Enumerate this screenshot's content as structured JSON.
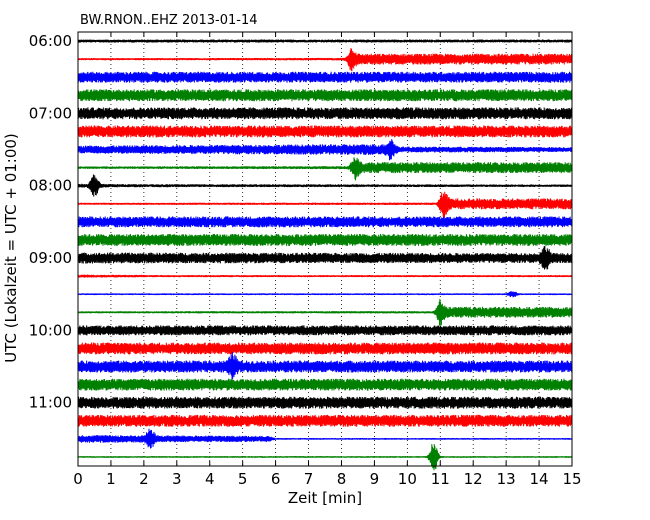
{
  "chart_data": {
    "type": "line",
    "title": "BW.RNON..EHZ 2013-01-14",
    "xlabel": "Zeit  [min]",
    "ylabel": "UTC (Lokalzeit = UTC + 01:00)",
    "xlim": [
      0,
      15
    ],
    "x_ticks": [
      "0",
      "1",
      "2",
      "3",
      "4",
      "5",
      "6",
      "7",
      "8",
      "9",
      "10",
      "11",
      "12",
      "13",
      "14",
      "15"
    ],
    "y_ticks": [
      "06:00",
      "07:00",
      "08:00",
      "09:00",
      "10:00",
      "11:00"
    ],
    "grid": true,
    "line_colors": [
      "#000000",
      "#ff0000",
      "#0000ff",
      "#008000"
    ],
    "series": [
      {
        "start": "06:00",
        "color": "#000000",
        "level": [
          [
            0,
            0.15
          ],
          [
            15,
            0.15
          ]
        ],
        "events": []
      },
      {
        "start": "06:15",
        "color": "#ff0000",
        "level": [
          [
            0,
            0.1
          ],
          [
            8.2,
            0.12
          ],
          [
            8.35,
            0.55
          ],
          [
            15,
            0.55
          ]
        ],
        "events": [
          {
            "t": 8.3,
            "amp": 0.9
          }
        ]
      },
      {
        "start": "06:30",
        "color": "#0000ff",
        "level": [
          [
            0,
            0.55
          ],
          [
            15,
            0.55
          ]
        ],
        "events": []
      },
      {
        "start": "06:45",
        "color": "#008000",
        "level": [
          [
            0,
            0.6
          ],
          [
            15,
            0.6
          ]
        ],
        "events": []
      },
      {
        "start": "07:00",
        "color": "#000000",
        "level": [
          [
            0,
            0.6
          ],
          [
            15,
            0.6
          ]
        ],
        "events": []
      },
      {
        "start": "07:15",
        "color": "#ff0000",
        "level": [
          [
            0,
            0.6
          ],
          [
            15,
            0.6
          ]
        ],
        "events": []
      },
      {
        "start": "07:30",
        "color": "#0000ff",
        "level": [
          [
            0,
            0.4
          ],
          [
            9.2,
            0.55
          ],
          [
            9.8,
            0.3
          ],
          [
            15,
            0.25
          ]
        ],
        "events": [
          {
            "t": 9.5,
            "amp": 0.8
          }
        ]
      },
      {
        "start": "07:45",
        "color": "#008000",
        "level": [
          [
            0,
            0.12
          ],
          [
            8.3,
            0.15
          ],
          [
            8.45,
            0.55
          ],
          [
            15,
            0.55
          ]
        ],
        "events": [
          {
            "t": 8.4,
            "amp": 0.9
          }
        ]
      },
      {
        "start": "08:00",
        "color": "#000000",
        "level": [
          [
            0,
            0.2
          ],
          [
            1.5,
            0.15
          ],
          [
            15,
            0.12
          ]
        ],
        "events": [
          {
            "t": 0.5,
            "amp": 1.1
          }
        ]
      },
      {
        "start": "08:15",
        "color": "#ff0000",
        "level": [
          [
            0,
            0.1
          ],
          [
            10.9,
            0.12
          ],
          [
            11.1,
            0.55
          ],
          [
            15,
            0.55
          ]
        ],
        "events": [
          {
            "t": 11.1,
            "amp": 0.9
          }
        ]
      },
      {
        "start": "08:30",
        "color": "#0000ff",
        "level": [
          [
            0,
            0.55
          ],
          [
            15,
            0.55
          ]
        ],
        "events": []
      },
      {
        "start": "08:45",
        "color": "#008000",
        "level": [
          [
            0,
            0.6
          ],
          [
            15,
            0.6
          ]
        ],
        "events": []
      },
      {
        "start": "09:00",
        "color": "#000000",
        "level": [
          [
            0,
            0.55
          ],
          [
            15,
            0.5
          ]
        ],
        "events": [
          {
            "t": 14.2,
            "amp": 0.9
          }
        ]
      },
      {
        "start": "09:15",
        "color": "#ff0000",
        "level": [
          [
            0,
            0.15
          ],
          [
            3,
            0.1
          ],
          [
            15,
            0.1
          ]
        ],
        "events": []
      },
      {
        "start": "09:30",
        "color": "#0000ff",
        "level": [
          [
            0,
            0.08
          ],
          [
            15,
            0.08
          ]
        ],
        "events": [
          {
            "t": 13.2,
            "amp": 0.3
          }
        ]
      },
      {
        "start": "09:45",
        "color": "#008000",
        "level": [
          [
            0,
            0.1
          ],
          [
            10.9,
            0.12
          ],
          [
            11.0,
            0.55
          ],
          [
            15,
            0.55
          ]
        ],
        "events": [
          {
            "t": 11.0,
            "amp": 0.9
          }
        ]
      },
      {
        "start": "10:00",
        "color": "#000000",
        "level": [
          [
            0,
            0.5
          ],
          [
            15,
            0.5
          ]
        ],
        "events": []
      },
      {
        "start": "10:15",
        "color": "#ff0000",
        "level": [
          [
            0,
            0.6
          ],
          [
            15,
            0.6
          ]
        ],
        "events": []
      },
      {
        "start": "10:30",
        "color": "#0000ff",
        "level": [
          [
            0,
            0.6
          ],
          [
            15,
            0.6
          ]
        ],
        "events": [
          {
            "t": 4.7,
            "amp": 0.9
          }
        ]
      },
      {
        "start": "10:45",
        "color": "#008000",
        "level": [
          [
            0,
            0.6
          ],
          [
            15,
            0.6
          ]
        ],
        "events": []
      },
      {
        "start": "11:00",
        "color": "#000000",
        "level": [
          [
            0,
            0.6
          ],
          [
            15,
            0.6
          ]
        ],
        "events": []
      },
      {
        "start": "11:15",
        "color": "#ff0000",
        "level": [
          [
            0,
            0.6
          ],
          [
            15,
            0.6
          ]
        ],
        "events": []
      },
      {
        "start": "11:30",
        "color": "#0000ff",
        "level": [
          [
            0,
            0.4
          ],
          [
            5.8,
            0.3
          ],
          [
            6,
            0.08
          ],
          [
            15,
            0.08
          ]
        ],
        "events": [
          {
            "t": 2.2,
            "amp": 0.8
          }
        ]
      },
      {
        "start": "11:45",
        "color": "#008000",
        "level": [
          [
            0,
            0.08
          ],
          [
            15,
            0.08
          ]
        ],
        "events": [
          {
            "t": 10.8,
            "amp": 1.6
          }
        ]
      }
    ]
  }
}
